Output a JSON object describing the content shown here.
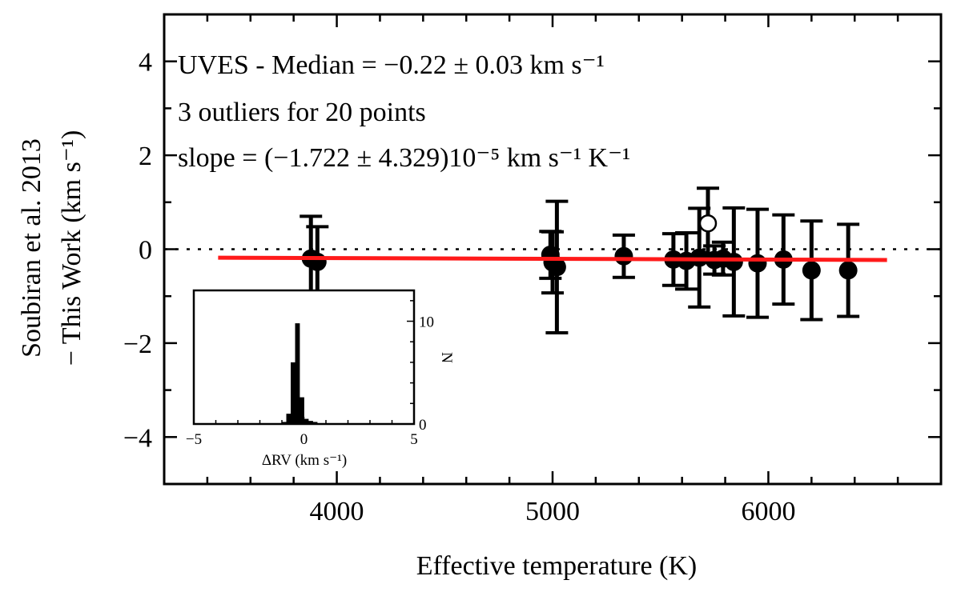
{
  "chart_data": {
    "type": "scatter",
    "xlabel": "Effective temperature (K)",
    "ylabel_line1": "Soubiran et al. 2013",
    "ylabel_line2": "− This Work (km s⁻¹)",
    "xlim": [
      3200,
      6800
    ],
    "ylim": [
      -5,
      5
    ],
    "xticks": [
      4000,
      5000,
      6000
    ],
    "yticks": [
      -4,
      -2,
      0,
      2,
      4
    ],
    "annotations": {
      "median": "UVES - Median = −0.22 ± 0.03 km s⁻¹",
      "outliers": "3 outliers for 20 points",
      "slope": "slope = (−1.722 ± 4.329)10⁻⁵ km s⁻¹ K⁻¹"
    },
    "zero_line": {
      "y": 0,
      "style": "dotted"
    },
    "fit_line": {
      "x": [
        3450,
        6550
      ],
      "y": [
        -0.18,
        -0.23
      ],
      "color": "#ff1a1a"
    },
    "points": [
      {
        "x": 3880,
        "y": -0.2,
        "err": 0.9,
        "outlier": false
      },
      {
        "x": 3910,
        "y": -0.27,
        "err": 0.75,
        "outlier": false
      },
      {
        "x": 4990,
        "y": -0.12,
        "err": 0.5,
        "outlier": false
      },
      {
        "x": 5000,
        "y": -0.28,
        "err": 0.65,
        "outlier": false
      },
      {
        "x": 5020,
        "y": -0.38,
        "err": 1.4,
        "outlier": false
      },
      {
        "x": 5330,
        "y": -0.15,
        "err": 0.45,
        "outlier": false
      },
      {
        "x": 5560,
        "y": -0.22,
        "err": 0.55,
        "outlier": false
      },
      {
        "x": 5620,
        "y": -0.25,
        "err": 0.6,
        "outlier": false
      },
      {
        "x": 5680,
        "y": -0.18,
        "err": 1.05,
        "outlier": false
      },
      {
        "x": 5720,
        "y": 0.55,
        "err": 0.75,
        "outlier": true
      },
      {
        "x": 5750,
        "y": -0.23,
        "err": 0.3,
        "outlier": false
      },
      {
        "x": 5790,
        "y": -0.2,
        "err": 0.35,
        "outlier": false
      },
      {
        "x": 5840,
        "y": -0.27,
        "err": 1.15,
        "outlier": false
      },
      {
        "x": 5950,
        "y": -0.3,
        "err": 1.15,
        "outlier": false
      },
      {
        "x": 6070,
        "y": -0.22,
        "err": 0.95,
        "outlier": false
      },
      {
        "x": 6200,
        "y": -0.45,
        "err": 1.05,
        "outlier": false
      },
      {
        "x": 6370,
        "y": -0.45,
        "err": 0.98,
        "outlier": false
      }
    ],
    "inset": {
      "type": "histogram",
      "xlabel": "ΔRV (km s⁻¹)",
      "ylabel": "N",
      "xlim": [
        -5,
        5
      ],
      "ylim": [
        0,
        13
      ],
      "xticks": [
        -5,
        0,
        5
      ],
      "yticks": [
        0,
        10
      ],
      "bins": [
        {
          "x0": -1.0,
          "x1": -0.8,
          "n": 0.2
        },
        {
          "x0": -0.8,
          "x1": -0.6,
          "n": 1.0
        },
        {
          "x0": -0.6,
          "x1": -0.4,
          "n": 6.0
        },
        {
          "x0": -0.4,
          "x1": -0.2,
          "n": 9.8
        },
        {
          "x0": -0.2,
          "x1": 0.0,
          "n": 2.6
        },
        {
          "x0": 0.0,
          "x1": 0.2,
          "n": 0.5
        },
        {
          "x0": 0.2,
          "x1": 0.4,
          "n": 0.3
        },
        {
          "x0": 0.4,
          "x1": 0.6,
          "n": 0.2
        }
      ]
    }
  }
}
